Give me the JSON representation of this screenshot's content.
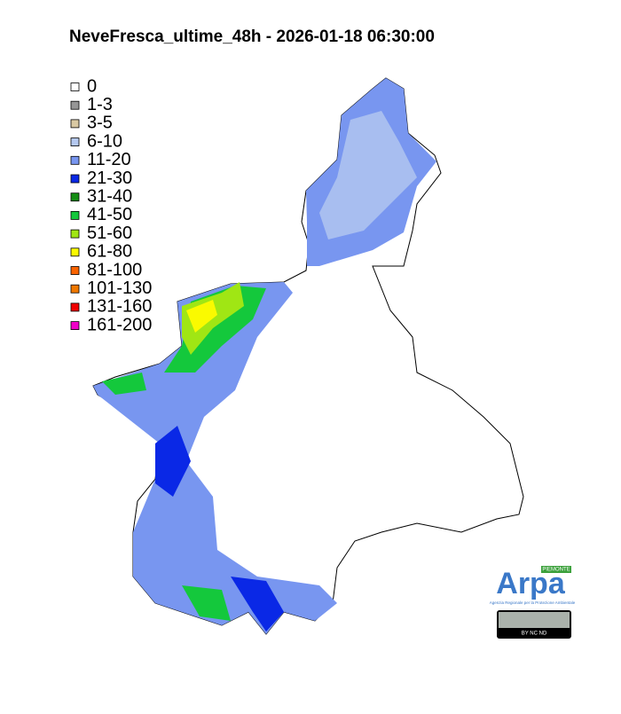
{
  "title": "NeveFresca_ultime_48h - 2026-01-18 06:30:00",
  "legend": [
    {
      "label": "0",
      "color": "#ffffff"
    },
    {
      "label": "1-3",
      "color": "#969696"
    },
    {
      "label": "3-5",
      "color": "#d9c9a3"
    },
    {
      "label": "6-10",
      "color": "#b4c8f0"
    },
    {
      "label": "11-20",
      "color": "#7896f0"
    },
    {
      "label": "21-30",
      "color": "#0a28e6"
    },
    {
      "label": "31-40",
      "color": "#148c14"
    },
    {
      "label": "41-50",
      "color": "#14c83c"
    },
    {
      "label": "51-60",
      "color": "#a0e614"
    },
    {
      "label": "61-80",
      "color": "#fafa00"
    },
    {
      "label": "81-100",
      "color": "#fa6400"
    },
    {
      "label": "101-130",
      "color": "#f07800"
    },
    {
      "label": "131-160",
      "color": "#f00000"
    },
    {
      "label": "161-200",
      "color": "#f000c8"
    }
  ],
  "logo": {
    "region": "PIEMONTE",
    "name": "Arpa",
    "subtitle": "Agenzia Regionale per la Protezione Ambientale",
    "license": "BY NC ND"
  }
}
